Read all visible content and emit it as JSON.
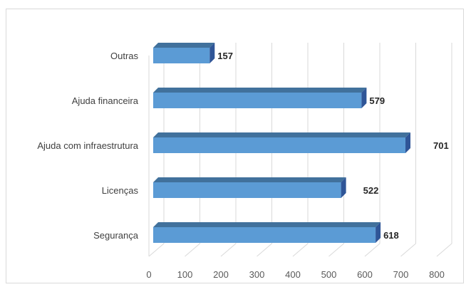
{
  "chart_data": {
    "type": "bar",
    "orientation": "horizontal",
    "style": "3d-clustered",
    "categories": [
      "Outras",
      "Ajuda financeira",
      "Ajuda com infraestrutura",
      "Licenças",
      "Segurança"
    ],
    "values": [
      157,
      579,
      701,
      522,
      618
    ],
    "data_labels": [
      "157",
      "579",
      "701",
      "522",
      "618"
    ],
    "x_ticks": [
      "0",
      "100",
      "200",
      "300",
      "400",
      "500",
      "600",
      "700",
      "800"
    ],
    "xlim": [
      0,
      800
    ],
    "grid": true,
    "legend": "none",
    "colors": {
      "bar_front": "#5b9bd5",
      "bar_top": "#41719c",
      "bar_side": "#2f5597",
      "grid": "#d9d9d9"
    }
  }
}
